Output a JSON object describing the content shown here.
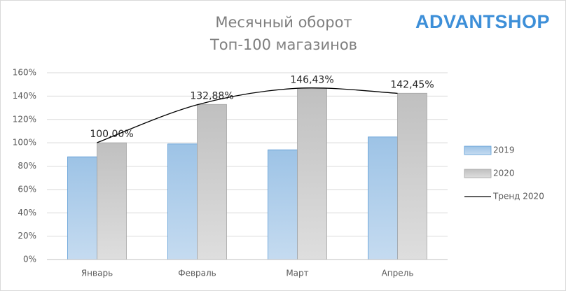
{
  "chart_data": {
    "type": "bar",
    "title": [
      "Месячный оборот",
      "Топ-100 магазинов"
    ],
    "brand": "ADVANTSHOP",
    "categories": [
      "Январь",
      "Февраль",
      "Март",
      "Апрель"
    ],
    "series": [
      {
        "name": "2019",
        "color": "#9dc3e6",
        "values": [
          88,
          99,
          94,
          105
        ]
      },
      {
        "name": "2020",
        "color": "#c9c9c9",
        "values": [
          100,
          132.88,
          146.43,
          142.45
        ],
        "value_labels": [
          "100,00%",
          "132,88%",
          "146,43%",
          "142,45%"
        ]
      }
    ],
    "trend": {
      "name": "Тренд 2020",
      "color": "#000000",
      "values": [
        100.1,
        132.6,
        146.7,
        142.4
      ]
    },
    "ylim": [
      0,
      160
    ],
    "yticks": [
      {
        "value": 0,
        "label": "0%"
      },
      {
        "value": 20,
        "label": "20%"
      },
      {
        "value": 40,
        "label": "40%"
      },
      {
        "value": 60,
        "label": "60%"
      },
      {
        "value": 80,
        "label": "80%"
      },
      {
        "value": 100,
        "label": "100%"
      },
      {
        "value": 120,
        "label": "120%"
      },
      {
        "value": 140,
        "label": "140%"
      },
      {
        "value": 160,
        "label": "160%"
      }
    ],
    "grid": true,
    "legend": "right"
  }
}
